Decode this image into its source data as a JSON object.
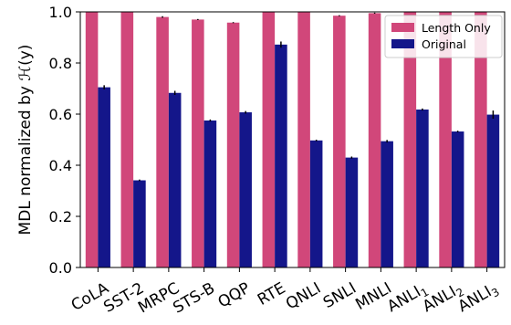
{
  "chart_data": {
    "type": "bar",
    "ylabel": "MDL normalized by ℋ(y)",
    "ylim": [
      0,
      1.0
    ],
    "yticks": [
      "0.0",
      "0.2",
      "0.4",
      "0.6",
      "0.8",
      "1.0"
    ],
    "grid": false,
    "legend_position": "top-right",
    "categories": [
      {
        "name": "CoLA"
      },
      {
        "name": "SST-2"
      },
      {
        "name": "MRPC"
      },
      {
        "name": "STS-B"
      },
      {
        "name": "QQP"
      },
      {
        "name": "RTE"
      },
      {
        "name": "QNLI"
      },
      {
        "name": "SNLI"
      },
      {
        "name": "MNLI"
      },
      {
        "name": "ANLI",
        "sub": "1"
      },
      {
        "name": "ANLI",
        "sub": "2"
      },
      {
        "name": "ANLI",
        "sub": "3"
      }
    ],
    "series": [
      {
        "name": "Length Only",
        "color": "#d1477a",
        "values": [
          1.0,
          1.0,
          0.98,
          0.97,
          0.958,
          1.0,
          1.0,
          0.985,
          0.995,
          1.0,
          1.0,
          1.0
        ],
        "errors": [
          0,
          0,
          0.003,
          0.002,
          0.002,
          0,
          0,
          0.002,
          0.002,
          0,
          0,
          0
        ]
      },
      {
        "name": "Original",
        "color": "#14168a",
        "values": [
          0.705,
          0.341,
          0.683,
          0.575,
          0.607,
          0.872,
          0.497,
          0.43,
          0.494,
          0.618,
          0.532,
          0.598
        ],
        "errors": [
          0.008,
          0.003,
          0.008,
          0.004,
          0.005,
          0.012,
          0.003,
          0.004,
          0.005,
          0.004,
          0.003,
          0.016
        ]
      }
    ]
  }
}
